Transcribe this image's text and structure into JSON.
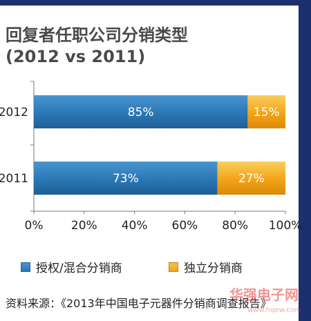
{
  "title": "回复者任职公司分销类型",
  "subtitle": "(2012 vs 2011)",
  "source": "资料来源：《2013年中国电子元器件分销商调查报告》",
  "colors": {
    "series1": "#2a77b5",
    "series2": "#f3a318",
    "frame": "#1c2f6e"
  },
  "chart_data": {
    "type": "bar",
    "orientation": "horizontal",
    "stacked": true,
    "categories": [
      "2012",
      "2011"
    ],
    "series": [
      {
        "name": "授权/混合分销商",
        "values": [
          85,
          73
        ],
        "labels": [
          "85%",
          "73%"
        ]
      },
      {
        "name": "独立分销商",
        "values": [
          15,
          27
        ],
        "labels": [
          "15%",
          "27%"
        ]
      }
    ],
    "xlim": [
      0,
      100
    ],
    "x_ticks": [
      "0%",
      "20%",
      "40%",
      "60%",
      "80%",
      "100%"
    ],
    "legend_position": "bottom",
    "grid": false
  },
  "watermark": {
    "text": "华强电子网",
    "subtext": "www.hqew.com"
  }
}
